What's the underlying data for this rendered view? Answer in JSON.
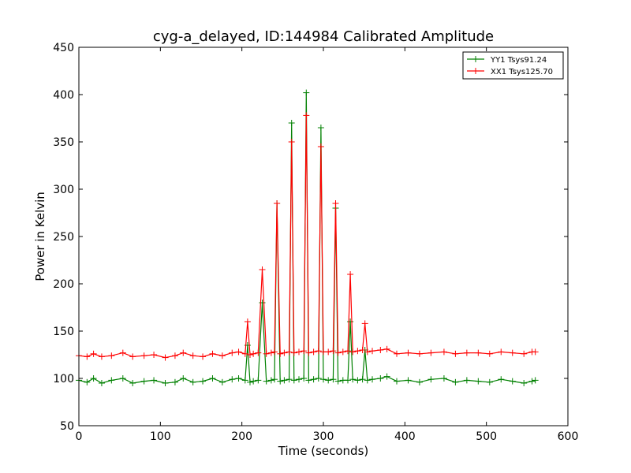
{
  "chart_data": {
    "type": "line",
    "title": "cyg-a_delayed, ID:144984 Calibrated Amplitude",
    "xlabel": "Time (seconds)",
    "ylabel": "Power in Kelvin",
    "xlim": [
      0,
      600
    ],
    "ylim": [
      50,
      450
    ],
    "xticks": [
      0,
      100,
      200,
      300,
      400,
      500,
      600
    ],
    "yticks": [
      50,
      100,
      150,
      200,
      250,
      300,
      350,
      400,
      450
    ],
    "grid": false,
    "legend_position": "top-right",
    "series": [
      {
        "name": "YY1 Tsys91.24",
        "color": "#008000",
        "x": [
          0,
          10,
          18,
          28,
          40,
          54,
          66,
          80,
          92,
          106,
          118,
          128,
          140,
          152,
          164,
          176,
          188,
          196,
          204,
          207,
          210,
          214,
          220,
          225,
          230,
          236,
          240,
          243,
          247,
          252,
          258,
          261,
          264,
          270,
          276,
          279,
          282,
          288,
          294,
          297,
          300,
          306,
          312,
          315,
          318,
          324,
          330,
          333,
          336,
          342,
          348,
          351,
          354,
          360,
          370,
          378,
          390,
          404,
          418,
          432,
          448,
          462,
          476,
          490,
          504,
          518,
          532,
          546,
          556,
          560
        ],
        "y": [
          98,
          96,
          100,
          95,
          98,
          100,
          95,
          97,
          98,
          95,
          96,
          100,
          96,
          97,
          100,
          96,
          99,
          100,
          98,
          135,
          96,
          97,
          98,
          180,
          97,
          98,
          99,
          285,
          97,
          98,
          99,
          370,
          98,
          99,
          100,
          402,
          98,
          99,
          100,
          365,
          99,
          98,
          99,
          280,
          97,
          98,
          98,
          160,
          99,
          98,
          99,
          130,
          98,
          99,
          100,
          102,
          97,
          98,
          96,
          99,
          100,
          96,
          98,
          97,
          96,
          99,
          97,
          95,
          97,
          98
        ]
      },
      {
        "name": "XX1 Tsys125.70",
        "color": "#ff0000",
        "x": [
          0,
          10,
          18,
          28,
          40,
          54,
          66,
          80,
          92,
          106,
          118,
          128,
          140,
          152,
          164,
          176,
          188,
          196,
          204,
          207,
          210,
          214,
          220,
          225,
          230,
          236,
          240,
          243,
          247,
          252,
          258,
          261,
          264,
          270,
          276,
          279,
          282,
          288,
          294,
          297,
          300,
          306,
          312,
          315,
          318,
          324,
          330,
          333,
          336,
          342,
          348,
          351,
          354,
          360,
          370,
          378,
          390,
          404,
          418,
          432,
          448,
          462,
          476,
          490,
          504,
          518,
          532,
          546,
          556,
          560
        ],
        "y": [
          124,
          123,
          126,
          123,
          124,
          127,
          123,
          124,
          125,
          122,
          124,
          127,
          124,
          123,
          126,
          124,
          127,
          128,
          126,
          160,
          125,
          126,
          127,
          215,
          126,
          127,
          128,
          285,
          126,
          127,
          128,
          350,
          127,
          128,
          129,
          378,
          127,
          128,
          129,
          345,
          128,
          128,
          129,
          285,
          127,
          128,
          129,
          210,
          128,
          129,
          130,
          158,
          128,
          129,
          130,
          131,
          126,
          127,
          126,
          127,
          128,
          126,
          127,
          127,
          126,
          128,
          127,
          126,
          128,
          128
        ]
      }
    ]
  }
}
